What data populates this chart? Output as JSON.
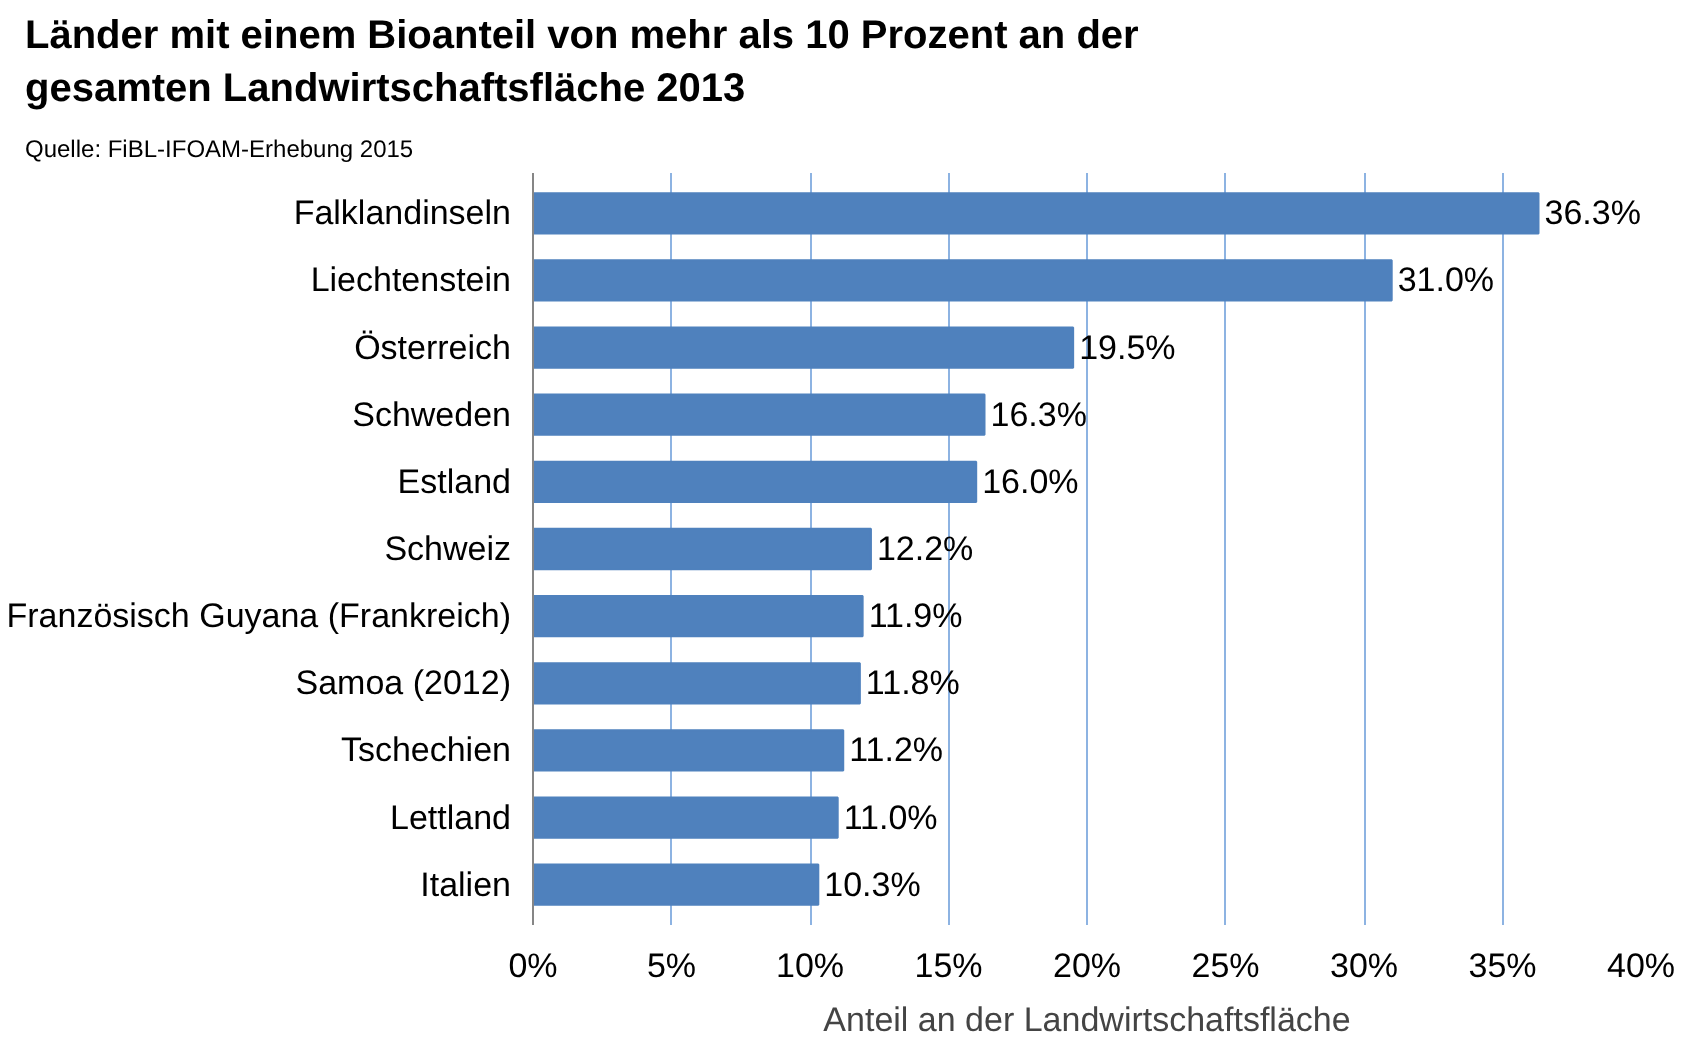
{
  "chart_data": {
    "type": "bar",
    "orientation": "horizontal",
    "title": "Länder mit einem Bioanteil von mehr als 10 Prozent an der gesamten Landwirtschaftsfläche 2013",
    "annotations": [
      "Quelle: FiBL-IFOAM-Erhebung 2015"
    ],
    "xlabel": "Anteil an der Landwirtschaftsfläche",
    "categories": [
      "Falklandinseln",
      "Liechtenstein",
      "Österreich",
      "Schweden",
      "Estland",
      "Schweiz",
      "Französisch Guyana (Frankreich)",
      "Samoa (2012)",
      "Tschechien",
      "Lettland",
      "Italien"
    ],
    "values": [
      36.3,
      31.0,
      19.5,
      16.3,
      16.0,
      12.2,
      11.9,
      11.8,
      11.2,
      11.0,
      10.3
    ],
    "value_labels": [
      "36.3%",
      "31.0%",
      "19.5%",
      "16.3%",
      "16.0%",
      "12.2%",
      "11.9%",
      "11.8%",
      "11.2%",
      "11.0%",
      "10.3%"
    ],
    "color": "#4f81bd",
    "xlim": [
      0,
      40
    ],
    "xticks": [
      {
        "value": 0,
        "label": "0%"
      },
      {
        "value": 5,
        "label": "5%"
      },
      {
        "value": 10,
        "label": "10%"
      },
      {
        "value": 15,
        "label": "15%"
      },
      {
        "value": 20,
        "label": "20%"
      },
      {
        "value": 25,
        "label": "25%"
      },
      {
        "value": 30,
        "label": "30%"
      },
      {
        "value": 35,
        "label": "35%"
      },
      {
        "value": 40,
        "label": "40%"
      }
    ],
    "grid": "x"
  }
}
